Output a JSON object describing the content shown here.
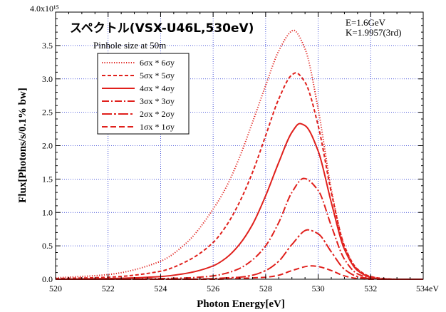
{
  "chart_data": {
    "type": "line",
    "title": "スペクトル(VSX-U46L,530eV)",
    "info": [
      "E=1.6GeV",
      "K=1.9957(3rd)"
    ],
    "legend_title": "Pinhole size at 50m",
    "xlabel": "Photon Energy[eV]",
    "ylabel": "Flux[Photons/s/0.1% bw]",
    "y_scale_label": "4.0x10¹⁵",
    "xlim": [
      520,
      534
    ],
    "ylim": [
      0,
      4.0
    ],
    "y_exponent": 15,
    "x_ticks": [
      "520",
      "522",
      "524",
      "526",
      "528",
      "530",
      "532",
      "534eV"
    ],
    "y_ticks": [
      "0.0",
      "0.5",
      "1.0",
      "1.5",
      "2.0",
      "2.5",
      "3.0",
      "3.5"
    ],
    "grid": true,
    "legend_position": "upper-left",
    "color": "#e0201c",
    "series": [
      {
        "name": "6σx * 6σy",
        "dash": "1.2 2.2",
        "peak_x": 529.05,
        "peak_y": 3.73,
        "x": [
          520,
          522,
          524,
          525,
          526,
          526.5,
          527,
          527.5,
          528,
          528.5,
          529,
          529.05,
          529.5,
          530,
          530.5,
          531,
          531.5,
          532,
          532.5,
          533,
          534
        ],
        "y": [
          0.02,
          0.07,
          0.27,
          0.55,
          1.05,
          1.38,
          1.82,
          2.35,
          2.9,
          3.42,
          3.72,
          3.73,
          3.45,
          2.55,
          1.35,
          0.5,
          0.15,
          0.04,
          0.01,
          0.0,
          0.0
        ]
      },
      {
        "name": "5σx * 5σy",
        "dash": "5 3",
        "peak_x": 529.15,
        "peak_y": 3.09,
        "x": [
          520,
          522,
          524,
          525,
          526,
          526.5,
          527,
          527.5,
          528,
          528.5,
          529,
          529.15,
          529.5,
          530,
          530.5,
          531,
          531.5,
          532,
          532.5,
          533,
          534
        ],
        "y": [
          0.01,
          0.03,
          0.12,
          0.27,
          0.55,
          0.8,
          1.15,
          1.6,
          2.15,
          2.7,
          3.06,
          3.09,
          2.95,
          2.3,
          1.3,
          0.5,
          0.15,
          0.04,
          0.01,
          0.0,
          0.0
        ]
      },
      {
        "name": "4σx * 4σy",
        "dash": "",
        "peak_x": 529.3,
        "peak_y": 2.33,
        "x": [
          520,
          522,
          524,
          525,
          526,
          526.5,
          527,
          527.5,
          528,
          528.5,
          529,
          529.3,
          529.5,
          530,
          530.5,
          531,
          531.5,
          532,
          532.5,
          533,
          534
        ],
        "y": [
          0.0,
          0.01,
          0.04,
          0.09,
          0.2,
          0.32,
          0.52,
          0.82,
          1.25,
          1.75,
          2.2,
          2.33,
          2.3,
          1.92,
          1.15,
          0.45,
          0.13,
          0.03,
          0.0,
          0.0,
          0.0
        ]
      },
      {
        "name": "3σx * 3σy",
        "dash": "10 3 2 3",
        "peak_x": 529.45,
        "peak_y": 1.51,
        "x": [
          520,
          522,
          524,
          525,
          526,
          526.5,
          527,
          527.5,
          528,
          528.5,
          529,
          529.45,
          530,
          530.5,
          531,
          531.5,
          532,
          532.5,
          533,
          534
        ],
        "y": [
          0.0,
          0.0,
          0.01,
          0.02,
          0.05,
          0.09,
          0.16,
          0.29,
          0.5,
          0.85,
          1.3,
          1.51,
          1.33,
          0.8,
          0.3,
          0.08,
          0.02,
          0.0,
          0.0,
          0.0
        ]
      },
      {
        "name": "2σx * 2σy",
        "dash": "14 3 3 3",
        "peak_x": 529.6,
        "peak_y": 0.74,
        "x": [
          520,
          524,
          525,
          526,
          526.5,
          527,
          527.5,
          528,
          528.5,
          529,
          529.6,
          530,
          530.5,
          531,
          531.5,
          532,
          533,
          534
        ],
        "y": [
          0.0,
          0.0,
          0.0,
          0.01,
          0.02,
          0.03,
          0.06,
          0.13,
          0.27,
          0.52,
          0.74,
          0.68,
          0.41,
          0.15,
          0.04,
          0.01,
          0.0,
          0.0
        ]
      },
      {
        "name": "1σx * 1σy",
        "dash": "8 4",
        "peak_x": 529.75,
        "peak_y": 0.2,
        "x": [
          520,
          525,
          526,
          527,
          527.5,
          528,
          528.5,
          529,
          529.75,
          530,
          530.5,
          531,
          531.5,
          532,
          533,
          534
        ],
        "y": [
          0.0,
          0.0,
          0.0,
          0.01,
          0.02,
          0.03,
          0.06,
          0.13,
          0.2,
          0.19,
          0.13,
          0.05,
          0.01,
          0.0,
          0.0,
          0.0
        ]
      }
    ]
  }
}
